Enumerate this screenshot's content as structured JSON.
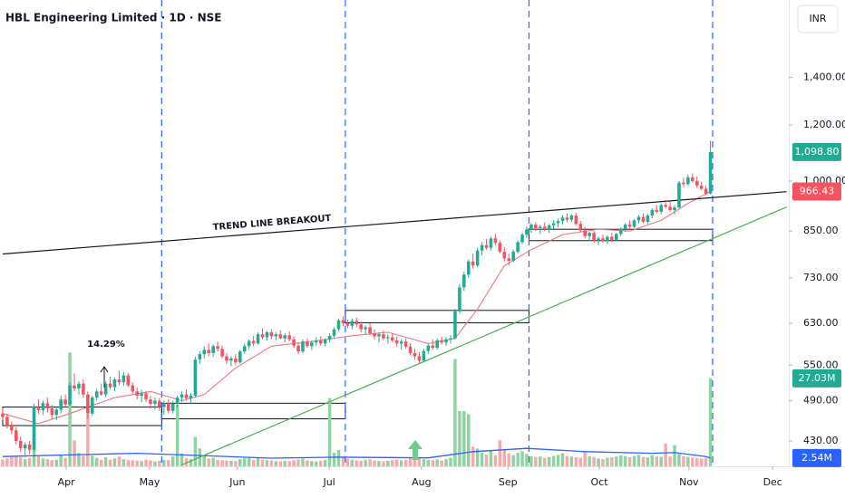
{
  "chart_data": {
    "type": "candlestick",
    "title": "HBL Engineering Limited · 1D · NSE",
    "currency": "INR",
    "log_scale": true,
    "grid": false,
    "ylim": [
      396,
      1800
    ],
    "yticks": [
      {
        "value": 1400,
        "label": "1,400.00"
      },
      {
        "value": 1200,
        "label": "1,200.00"
      },
      {
        "value": 1000,
        "label": "1,000.00"
      },
      {
        "value": 850,
        "label": "850.00"
      },
      {
        "value": 730,
        "label": "730.00"
      },
      {
        "value": 630,
        "label": "630.00"
      },
      {
        "value": 550,
        "label": "550.00"
      },
      {
        "value": 490,
        "label": "490.00"
      },
      {
        "value": 430,
        "label": "430.00"
      }
    ],
    "xlim": [
      -0.6,
      175.5
    ],
    "xticks": [
      {
        "value": 14.2,
        "label": "Apr"
      },
      {
        "value": 32.8,
        "label": "May"
      },
      {
        "value": 52.4,
        "label": "Jun"
      },
      {
        "value": 72.9,
        "label": "Jul"
      },
      {
        "value": 93.5,
        "label": "Aug"
      },
      {
        "value": 112.8,
        "label": "Sep"
      },
      {
        "value": 133.2,
        "label": "Oct"
      },
      {
        "value": 153.2,
        "label": "Nov"
      },
      {
        "value": 171.9,
        "label": "Dec"
      }
    ],
    "up_color": "#22ab94",
    "down_color": "#f7525f",
    "candles": [
      [
        470,
        478,
        460,
        465
      ],
      [
        465,
        470,
        448,
        452
      ],
      [
        452,
        458,
        440,
        445
      ],
      [
        445,
        450,
        425,
        430
      ],
      [
        430,
        436,
        415,
        420
      ],
      [
        420,
        428,
        408,
        425
      ],
      [
        425,
        430,
        412,
        418
      ],
      [
        418,
        485,
        416,
        480
      ],
      [
        480,
        492,
        470,
        475
      ],
      [
        475,
        490,
        468,
        486
      ],
      [
        486,
        495,
        472,
        478
      ],
      [
        478,
        484,
        462,
        468
      ],
      [
        468,
        480,
        460,
        476
      ],
      [
        476,
        498,
        470,
        492
      ],
      [
        492,
        500,
        480,
        484
      ],
      [
        484,
        520,
        482,
        515
      ],
      [
        515,
        535,
        505,
        510
      ],
      [
        510,
        522,
        500,
        518
      ],
      [
        518,
        525,
        495,
        500
      ],
      [
        500,
        505,
        462,
        470
      ],
      [
        470,
        498,
        466,
        495
      ],
      [
        495,
        510,
        490,
        505
      ],
      [
        505,
        518,
        498,
        500
      ],
      [
        500,
        522,
        496,
        518
      ],
      [
        518,
        530,
        508,
        512
      ],
      [
        512,
        528,
        505,
        525
      ],
      [
        525,
        540,
        515,
        520
      ],
      [
        520,
        538,
        514,
        532
      ],
      [
        532,
        536,
        512,
        515
      ],
      [
        515,
        520,
        500,
        505
      ],
      [
        505,
        512,
        492,
        498
      ],
      [
        498,
        508,
        488,
        502
      ],
      [
        502,
        506,
        488,
        492
      ],
      [
        492,
        498,
        478,
        485
      ],
      [
        485,
        495,
        476,
        490
      ],
      [
        490,
        494,
        474,
        480
      ],
      [
        480,
        490,
        468,
        486
      ],
      [
        486,
        492,
        470,
        474
      ],
      [
        474,
        490,
        470,
        485
      ],
      [
        485,
        498,
        480,
        495
      ],
      [
        495,
        505,
        488,
        500
      ],
      [
        500,
        508,
        490,
        494
      ],
      [
        494,
        502,
        486,
        498
      ],
      [
        498,
        565,
        496,
        560
      ],
      [
        560,
        575,
        552,
        570
      ],
      [
        570,
        585,
        562,
        578
      ],
      [
        578,
        590,
        566,
        572
      ],
      [
        572,
        588,
        565,
        585
      ],
      [
        585,
        594,
        575,
        580
      ],
      [
        580,
        586,
        562,
        566
      ],
      [
        566,
        572,
        552,
        558
      ],
      [
        558,
        566,
        548,
        562
      ],
      [
        562,
        570,
        550,
        555
      ],
      [
        555,
        578,
        552,
        575
      ],
      [
        575,
        590,
        570,
        585
      ],
      [
        585,
        598,
        578,
        595
      ],
      [
        595,
        605,
        585,
        590
      ],
      [
        590,
        612,
        588,
        608
      ],
      [
        608,
        620,
        598,
        602
      ],
      [
        602,
        615,
        596,
        612
      ],
      [
        612,
        618,
        598,
        604
      ],
      [
        604,
        612,
        596,
        608
      ],
      [
        608,
        616,
        598,
        600
      ],
      [
        600,
        610,
        592,
        606
      ],
      [
        606,
        614,
        594,
        598
      ],
      [
        598,
        604,
        582,
        586
      ],
      [
        586,
        592,
        570,
        575
      ],
      [
        575,
        598,
        572,
        594
      ],
      [
        594,
        600,
        582,
        585
      ],
      [
        585,
        596,
        578,
        592
      ],
      [
        592,
        602,
        585,
        596
      ],
      [
        596,
        604,
        586,
        590
      ],
      [
        590,
        600,
        584,
        598
      ],
      [
        598,
        610,
        592,
        605
      ],
      [
        605,
        622,
        600,
        618
      ],
      [
        618,
        640,
        614,
        636
      ],
      [
        636,
        645,
        624,
        630
      ],
      [
        630,
        638,
        620,
        625
      ],
      [
        625,
        640,
        618,
        635
      ],
      [
        635,
        642,
        622,
        628
      ],
      [
        628,
        634,
        612,
        618
      ],
      [
        618,
        626,
        608,
        622
      ],
      [
        622,
        630,
        606,
        610
      ],
      [
        610,
        618,
        598,
        604
      ],
      [
        604,
        612,
        592,
        608
      ],
      [
        608,
        615,
        596,
        600
      ],
      [
        600,
        608,
        590,
        602
      ],
      [
        602,
        610,
        592,
        596
      ],
      [
        596,
        604,
        584,
        590
      ],
      [
        590,
        598,
        578,
        594
      ],
      [
        594,
        600,
        580,
        584
      ],
      [
        584,
        590,
        568,
        572
      ],
      [
        572,
        580,
        560,
        566
      ],
      [
        566,
        574,
        552,
        558
      ],
      [
        558,
        580,
        556,
        576
      ],
      [
        576,
        590,
        570,
        586
      ],
      [
        586,
        598,
        578,
        582
      ],
      [
        582,
        600,
        578,
        596
      ],
      [
        596,
        604,
        588,
        592
      ],
      [
        592,
        602,
        586,
        598
      ],
      [
        598,
        606,
        590,
        600
      ],
      [
        600,
        660,
        598,
        655
      ],
      [
        655,
        715,
        650,
        708
      ],
      [
        708,
        745,
        700,
        738
      ],
      [
        738,
        775,
        730,
        770
      ],
      [
        770,
        790,
        752,
        760
      ],
      [
        760,
        805,
        756,
        798
      ],
      [
        798,
        820,
        785,
        812
      ],
      [
        812,
        828,
        800,
        805
      ],
      [
        805,
        835,
        798,
        830
      ],
      [
        830,
        842,
        812,
        818
      ],
      [
        818,
        825,
        790,
        795
      ],
      [
        795,
        806,
        770,
        778
      ],
      [
        778,
        790,
        760,
        772
      ],
      [
        772,
        800,
        768,
        795
      ],
      [
        795,
        825,
        790,
        820
      ],
      [
        820,
        845,
        814,
        840
      ],
      [
        840,
        862,
        832,
        855
      ],
      [
        855,
        872,
        845,
        868
      ],
      [
        868,
        875,
        850,
        858
      ],
      [
        858,
        868,
        842,
        862
      ],
      [
        862,
        875,
        850,
        855
      ],
      [
        855,
        870,
        845,
        866
      ],
      [
        866,
        880,
        856,
        872
      ],
      [
        872,
        885,
        860,
        878
      ],
      [
        878,
        895,
        870,
        888
      ],
      [
        888,
        900,
        875,
        882
      ],
      [
        882,
        898,
        876,
        894
      ],
      [
        894,
        902,
        866,
        870
      ],
      [
        870,
        878,
        848,
        852
      ],
      [
        852,
        862,
        830,
        836
      ],
      [
        836,
        848,
        822,
        845
      ],
      [
        845,
        850,
        818,
        824
      ],
      [
        824,
        835,
        812,
        830
      ],
      [
        830,
        840,
        818,
        822
      ],
      [
        822,
        838,
        815,
        834
      ],
      [
        834,
        845,
        820,
        826
      ],
      [
        826,
        845,
        822,
        842
      ],
      [
        842,
        860,
        836,
        856
      ],
      [
        856,
        872,
        848,
        868
      ],
      [
        868,
        880,
        855,
        862
      ],
      [
        862,
        885,
        858,
        880
      ],
      [
        880,
        895,
        872,
        890
      ],
      [
        890,
        900,
        872,
        876
      ],
      [
        876,
        898,
        870,
        894
      ],
      [
        894,
        915,
        886,
        910
      ],
      [
        910,
        925,
        900,
        905
      ],
      [
        905,
        930,
        898,
        925
      ],
      [
        925,
        940,
        915,
        920
      ],
      [
        920,
        935,
        905,
        910
      ],
      [
        910,
        925,
        898,
        918
      ],
      [
        918,
        1000,
        915,
        995
      ],
      [
        995,
        1010,
        980,
        990
      ],
      [
        990,
        1020,
        985,
        1012
      ],
      [
        1012,
        1025,
        995,
        1000
      ],
      [
        1000,
        1015,
        978,
        985
      ],
      [
        985,
        998,
        970,
        975
      ],
      [
        975,
        985,
        955,
        960
      ],
      [
        960,
        1140,
        958,
        1098.8
      ]
    ],
    "close_label": "1,098.80",
    "volume": {
      "ylim": [
        0,
        143.4
      ],
      "up_color": "#8fd3a3",
      "down_color": "#f7a9ad",
      "last_label": "27.03M",
      "values": [
        2.1,
        2.4,
        3.0,
        3.2,
        2.8,
        2.2,
        2.6,
        12.0,
        3.1,
        2.4,
        2.2,
        1.9,
        2.0,
        3.6,
        2.5,
        35.0,
        8.0,
        4.1,
        3.2,
        16.0,
        3.3,
        2.6,
        2.0,
        2.8,
        2.1,
        2.4,
        3.0,
        2.2,
        1.9,
        1.8,
        1.7,
        1.6,
        2.0,
        1.8,
        1.5,
        1.7,
        2.0,
        1.9,
        3.0,
        19.0,
        4.0,
        2.5,
        2.2,
        9.0,
        5.5,
        3.2,
        2.4,
        2.6,
        2.0,
        1.9,
        1.8,
        1.7,
        1.6,
        2.2,
        2.5,
        2.8,
        2.0,
        2.6,
        2.1,
        1.9,
        1.8,
        1.6,
        1.5,
        1.7,
        1.6,
        1.9,
        2.1,
        2.4,
        1.8,
        1.6,
        1.5,
        1.7,
        1.9,
        21.0,
        4.2,
        5.0,
        3.1,
        2.4,
        2.0,
        1.8,
        1.7,
        1.9,
        2.2,
        1.8,
        1.6,
        1.5,
        1.7,
        1.9,
        2.1,
        1.8,
        2.0,
        2.4,
        2.6,
        2.8,
        2.2,
        2.0,
        1.9,
        2.1,
        1.8,
        2.2,
        2.6,
        33.0,
        17.0,
        17.0,
        16.0,
        6.0,
        5.5,
        4.2,
        3.6,
        4.8,
        3.4,
        8.0,
        5.0,
        4.0,
        3.5,
        4.2,
        4.6,
        3.8,
        3.1,
        2.9,
        3.0,
        2.6,
        2.8,
        3.2,
        3.5,
        4.0,
        3.2,
        3.0,
        2.8,
        2.6,
        4.5,
        3.1,
        2.9,
        2.4,
        2.2,
        2.6,
        2.8,
        3.0,
        3.4,
        3.1,
        2.8,
        3.2,
        3.5,
        2.9,
        2.7,
        3.4,
        3.0,
        2.9,
        7.0,
        3.0,
        6.5,
        3.8,
        3.2,
        2.9,
        2.7,
        2.5,
        2.4,
        2.6,
        27.03
      ]
    },
    "ma": {
      "color": "#f0777f",
      "x": [
        0,
        8,
        15,
        25,
        33,
        40,
        45,
        52,
        60,
        70,
        78,
        86,
        95,
        101,
        106,
        112,
        118,
        125,
        133,
        140,
        147,
        153,
        158
      ],
      "values": [
        470,
        455,
        470,
        495,
        505,
        490,
        500,
        545,
        585,
        595,
        605,
        612,
        590,
        600,
        660,
        760,
        800,
        840,
        855,
        850,
        880,
        930,
        966.43
      ]
    },
    "volume_ma": {
      "color": "#2962ff",
      "last_label": "2.54M",
      "x": [
        0,
        15,
        30,
        40,
        60,
        75,
        95,
        105,
        117,
        130,
        145,
        150,
        157,
        158
      ],
      "values": [
        3.0,
        3.5,
        4.0,
        3.5,
        2.5,
        2.8,
        2.6,
        4.5,
        5.5,
        4.5,
        4.0,
        4.2,
        3.0,
        2.54
      ]
    },
    "trendlines": [
      {
        "color": "#131722",
        "x": [
          0,
          175
        ],
        "values": [
          789,
          966
        ]
      },
      {
        "color": "#4caf50",
        "x": [
          40,
          175
        ],
        "values": [
          398,
          919
        ]
      }
    ],
    "zones": [
      {
        "x": [
          0,
          35.5
        ],
        "values": [
          452,
          480
        ]
      },
      {
        "x": [
          35.5,
          76.5
        ],
        "values": [
          462,
          486
        ]
      },
      {
        "x": [
          76.5,
          117.5
        ],
        "values": [
          631,
          657
        ]
      },
      {
        "x": [
          117.5,
          158.5
        ],
        "values": [
          824,
          855
        ]
      }
    ],
    "session_markers": [
      35.5,
      76.5,
      117.5,
      158.5
    ],
    "annotations": [
      "14.29%",
      "TREND LINE BREAKOUT"
    ]
  }
}
